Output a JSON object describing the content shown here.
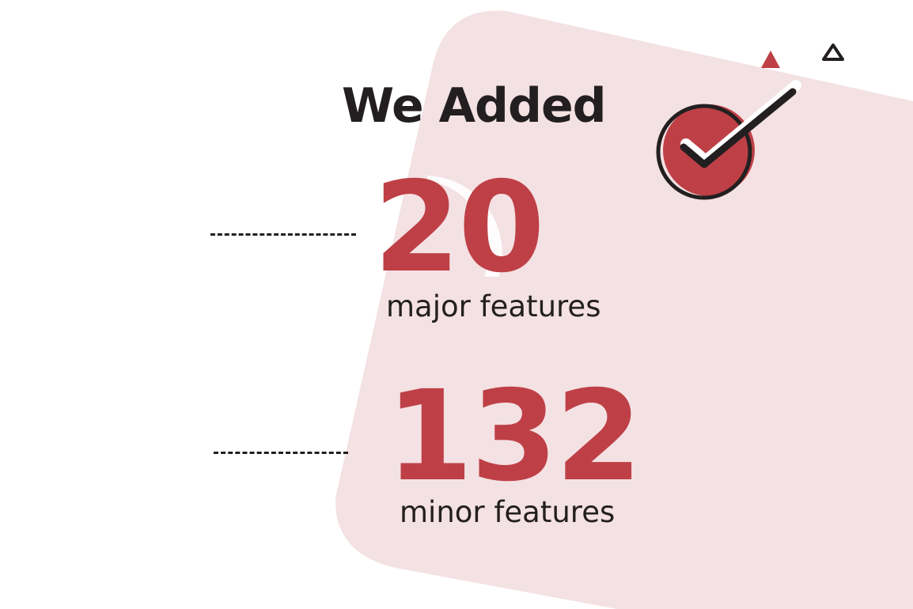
{
  "headline": "We Added",
  "stats": [
    {
      "value": "20",
      "label": "major features"
    },
    {
      "value": "132",
      "label": "minor features"
    }
  ],
  "icons": {
    "check": "check-circle-icon",
    "triangle_filled": "triangle-filled-icon",
    "triangle_outline": "triangle-outline-icon"
  },
  "colors": {
    "accent": "#be4046",
    "background_shape": "#f4e1e3",
    "text": "#231f20",
    "page": "#ffffff"
  }
}
